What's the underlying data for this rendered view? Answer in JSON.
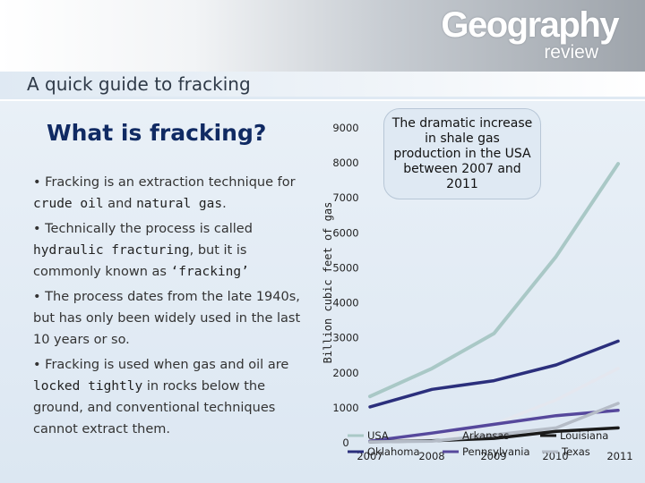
{
  "brand": {
    "logo_main": "Geography",
    "logo_sub": "review"
  },
  "subtitle": "A quick guide to fracking",
  "title": "What is fracking?",
  "bullets": {
    "b1": {
      "pre": "• Fracking is an extraction technique for ",
      "t1": "crude oil",
      "mid": " and ",
      "t2": "natural gas",
      "post": "."
    },
    "b2": {
      "pre": "• Technically the process is called ",
      "t1": "hydraulic fracturing",
      "mid": ", but it is commonly known as ",
      "t2": "‘fracking’"
    },
    "b3": {
      "text": "• The process dates from the late 1940s, but has only been widely used in the last 10 years or so."
    },
    "b4": {
      "pre": "• Fracking is used when gas and oil are ",
      "t1": "locked tightly",
      "post": " in rocks below the ground, and conventional techniques cannot extract them."
    }
  },
  "callout": "The dramatic increase in shale gas production in the USA between 2007 and 2011",
  "colors": {
    "USA": "#a9c8c6",
    "Oklahoma": "#2b2f7c",
    "Arkansas": "#e4e7ef",
    "Pennsylvania": "#56489c",
    "Louisiana": "#1a1a1a",
    "Texas": "#b5bcc7"
  },
  "chart_data": {
    "type": "line",
    "title": "",
    "xlabel": "",
    "ylabel": "Billion cubic feet of gas",
    "categories": [
      "2007",
      "2008",
      "2009",
      "2010",
      "2011"
    ],
    "y_ticks": [
      "9000",
      "8000",
      "7000",
      "6000",
      "5000",
      "4000",
      "3000",
      "2000",
      "1000",
      "0"
    ],
    "ylim": [
      0,
      9000
    ],
    "legend": [
      "USA",
      "Oklahoma",
      "Arkansas",
      "Pennsylvania",
      "Louisiana",
      "Texas"
    ],
    "series": [
      {
        "name": "USA",
        "values": [
          1300,
          2100,
          3100,
          5300,
          7950
        ]
      },
      {
        "name": "Oklahoma",
        "values": [
          1000,
          1500,
          1750,
          2200,
          2880
        ]
      },
      {
        "name": "Arkansas",
        "values": [
          50,
          150,
          500,
          1200,
          2100
        ]
      },
      {
        "name": "Pennsylvania",
        "values": [
          20,
          250,
          500,
          750,
          900
        ]
      },
      {
        "name": "Louisiana",
        "values": [
          0,
          30,
          100,
          300,
          400
        ]
      },
      {
        "name": "Texas",
        "values": [
          0,
          20,
          200,
          400,
          1100
        ]
      }
    ]
  }
}
